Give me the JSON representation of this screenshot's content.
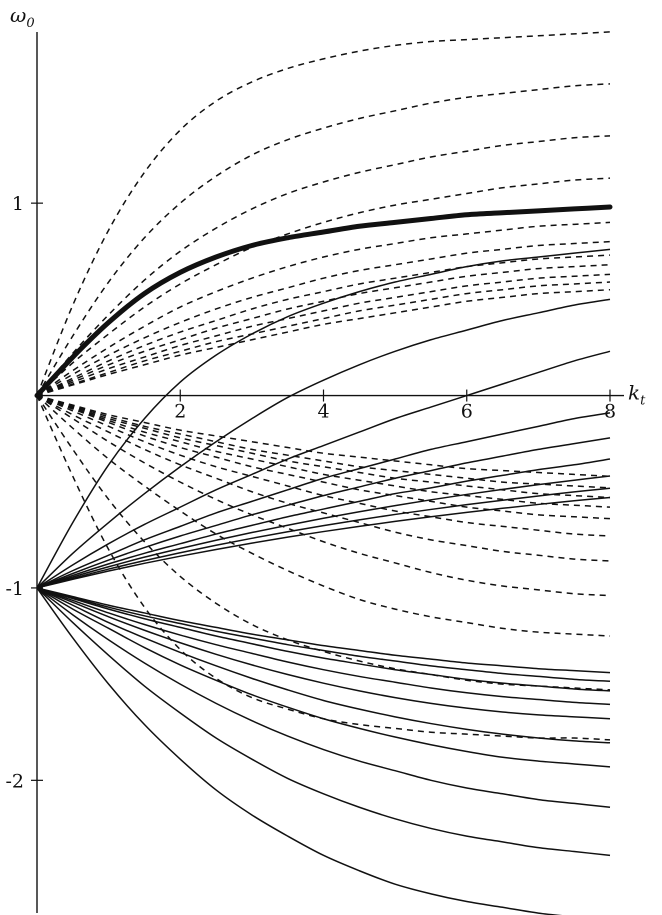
{
  "chart_data": {
    "type": "line",
    "title": "",
    "xlabel": {
      "main": "k",
      "sub": "t"
    },
    "ylabel": {
      "main": "ω",
      "sub": "0"
    },
    "xlim": [
      0,
      8
    ],
    "ylim": [
      -2.7,
      1.9
    ],
    "x_ticks": [
      {
        "value": 2,
        "label": "2"
      },
      {
        "value": 4,
        "label": "4"
      },
      {
        "value": 6,
        "label": "6"
      },
      {
        "value": 8,
        "label": "8"
      }
    ],
    "y_ticks": [
      {
        "value": 1,
        "label": "1"
      },
      {
        "value": -1,
        "label": "-1"
      },
      {
        "value": -2,
        "label": "-2"
      }
    ],
    "grid": false,
    "legend": "none",
    "line_color": "#111111",
    "x": [
      0,
      0.5,
      1,
      1.5,
      2,
      2.5,
      3,
      3.5,
      4,
      4.5,
      5,
      5.5,
      6,
      6.5,
      7,
      7.5,
      8
    ],
    "series": [
      {
        "style": "bold",
        "values": [
          0,
          0.2,
          0.38,
          0.53,
          0.64,
          0.72,
          0.78,
          0.82,
          0.85,
          0.88,
          0.9,
          0.92,
          0.94,
          0.95,
          0.96,
          0.97,
          0.98
        ]
      },
      {
        "style": "dashed",
        "values": [
          0,
          0.47,
          0.86,
          1.16,
          1.38,
          1.53,
          1.63,
          1.7,
          1.75,
          1.79,
          1.82,
          1.84,
          1.85,
          1.86,
          1.87,
          1.88,
          1.89
        ]
      },
      {
        "style": "dashed",
        "values": [
          0,
          0.31,
          0.59,
          0.82,
          1.0,
          1.14,
          1.25,
          1.33,
          1.39,
          1.44,
          1.48,
          1.52,
          1.55,
          1.57,
          1.59,
          1.61,
          1.62
        ]
      },
      {
        "style": "dashed",
        "values": [
          0,
          0.22,
          0.42,
          0.6,
          0.75,
          0.87,
          0.97,
          1.05,
          1.11,
          1.16,
          1.2,
          1.24,
          1.27,
          1.3,
          1.32,
          1.34,
          1.35
        ]
      },
      {
        "style": "dashed",
        "values": [
          0,
          0.17,
          0.32,
          0.46,
          0.58,
          0.68,
          0.77,
          0.84,
          0.9,
          0.95,
          0.99,
          1.02,
          1.05,
          1.08,
          1.1,
          1.12,
          1.13
        ]
      },
      {
        "style": "dashed",
        "values": [
          0,
          0.13,
          0.25,
          0.36,
          0.46,
          0.54,
          0.61,
          0.67,
          0.72,
          0.76,
          0.79,
          0.82,
          0.84,
          0.86,
          0.88,
          0.89,
          0.9
        ]
      },
      {
        "style": "dashed",
        "values": [
          0,
          0.11,
          0.21,
          0.3,
          0.38,
          0.45,
          0.51,
          0.56,
          0.61,
          0.65,
          0.68,
          0.71,
          0.74,
          0.76,
          0.78,
          0.79,
          0.8
        ]
      },
      {
        "style": "dashed",
        "values": [
          0,
          0.09,
          0.18,
          0.26,
          0.33,
          0.39,
          0.45,
          0.5,
          0.54,
          0.58,
          0.61,
          0.64,
          0.67,
          0.69,
          0.71,
          0.72,
          0.73
        ]
      },
      {
        "style": "dashed",
        "values": [
          0,
          0.08,
          0.16,
          0.23,
          0.29,
          0.35,
          0.4,
          0.45,
          0.49,
          0.53,
          0.56,
          0.59,
          0.62,
          0.64,
          0.66,
          0.67,
          0.68
        ]
      },
      {
        "style": "dashed",
        "values": [
          0,
          0.07,
          0.14,
          0.2,
          0.26,
          0.31,
          0.36,
          0.4,
          0.44,
          0.48,
          0.51,
          0.54,
          0.57,
          0.59,
          0.61,
          0.62,
          0.63
        ]
      },
      {
        "style": "dashed",
        "values": [
          0,
          0.06,
          0.12,
          0.18,
          0.23,
          0.28,
          0.32,
          0.36,
          0.4,
          0.44,
          0.47,
          0.5,
          0.53,
          0.55,
          0.57,
          0.58,
          0.59
        ]
      },
      {
        "style": "dashed",
        "values": [
          0,
          0.055,
          0.11,
          0.16,
          0.21,
          0.25,
          0.29,
          0.33,
          0.37,
          0.4,
          0.43,
          0.46,
          0.49,
          0.51,
          0.53,
          0.54,
          0.55
        ]
      },
      {
        "style": "dashed",
        "values": [
          0,
          -0.05,
          -0.1,
          -0.14,
          -0.18,
          -0.21,
          -0.24,
          -0.27,
          -0.3,
          -0.32,
          -0.34,
          -0.36,
          -0.38,
          -0.39,
          -0.4,
          -0.41,
          -0.42
        ]
      },
      {
        "style": "dashed",
        "values": [
          0,
          -0.055,
          -0.11,
          -0.16,
          -0.2,
          -0.24,
          -0.28,
          -0.31,
          -0.34,
          -0.37,
          -0.39,
          -0.41,
          -0.43,
          -0.45,
          -0.46,
          -0.47,
          -0.48
        ]
      },
      {
        "style": "dashed",
        "values": [
          0,
          -0.06,
          -0.12,
          -0.17,
          -0.22,
          -0.26,
          -0.3,
          -0.34,
          -0.37,
          -0.4,
          -0.43,
          -0.45,
          -0.47,
          -0.49,
          -0.51,
          -0.52,
          -0.53
        ]
      },
      {
        "style": "dashed",
        "values": [
          0,
          -0.065,
          -0.13,
          -0.19,
          -0.24,
          -0.29,
          -0.33,
          -0.37,
          -0.41,
          -0.44,
          -0.47,
          -0.5,
          -0.52,
          -0.54,
          -0.56,
          -0.57,
          -0.58
        ]
      },
      {
        "style": "dashed",
        "values": [
          0,
          -0.07,
          -0.14,
          -0.21,
          -0.27,
          -0.32,
          -0.37,
          -0.41,
          -0.45,
          -0.49,
          -0.52,
          -0.55,
          -0.58,
          -0.6,
          -0.62,
          -0.63,
          -0.64
        ]
      },
      {
        "style": "dashed",
        "values": [
          0,
          -0.08,
          -0.16,
          -0.24,
          -0.31,
          -0.37,
          -0.42,
          -0.47,
          -0.52,
          -0.56,
          -0.6,
          -0.63,
          -0.66,
          -0.68,
          -0.7,
          -0.72,
          -0.73
        ]
      },
      {
        "style": "dashed",
        "values": [
          0,
          -0.1,
          -0.19,
          -0.28,
          -0.36,
          -0.43,
          -0.5,
          -0.56,
          -0.61,
          -0.66,
          -0.71,
          -0.75,
          -0.78,
          -0.81,
          -0.83,
          -0.85,
          -0.86
        ]
      },
      {
        "style": "dashed",
        "values": [
          0,
          -0.12,
          -0.24,
          -0.35,
          -0.45,
          -0.54,
          -0.62,
          -0.69,
          -0.76,
          -0.82,
          -0.87,
          -0.92,
          -0.96,
          -0.99,
          -1.01,
          -1.03,
          -1.04
        ]
      },
      {
        "style": "dashed",
        "values": [
          0,
          -0.17,
          -0.33,
          -0.47,
          -0.6,
          -0.72,
          -0.82,
          -0.91,
          -0.99,
          -1.06,
          -1.11,
          -1.15,
          -1.18,
          -1.21,
          -1.23,
          -1.24,
          -1.25
        ]
      },
      {
        "style": "dashed",
        "values": [
          0,
          -0.28,
          -0.54,
          -0.76,
          -0.94,
          -1.08,
          -1.19,
          -1.27,
          -1.33,
          -1.38,
          -1.42,
          -1.45,
          -1.48,
          -1.5,
          -1.51,
          -1.52,
          -1.53
        ]
      },
      {
        "style": "dashed",
        "values": [
          0,
          -0.42,
          -0.8,
          -1.1,
          -1.32,
          -1.47,
          -1.57,
          -1.63,
          -1.68,
          -1.71,
          -1.73,
          -1.75,
          -1.76,
          -1.77,
          -1.78,
          -1.78,
          -1.79
        ]
      },
      {
        "style": "solid",
        "values": [
          -1,
          -0.66,
          -0.36,
          -0.12,
          0.07,
          0.21,
          0.32,
          0.41,
          0.48,
          0.54,
          0.59,
          0.63,
          0.67,
          0.7,
          0.72,
          0.74,
          0.76
        ]
      },
      {
        "style": "solid",
        "values": [
          -1,
          -0.82,
          -0.66,
          -0.51,
          -0.37,
          -0.24,
          -0.12,
          -0.01,
          0.08,
          0.16,
          0.23,
          0.29,
          0.34,
          0.39,
          0.43,
          0.47,
          0.5
        ]
      },
      {
        "style": "solid",
        "values": [
          -1,
          -0.88,
          -0.77,
          -0.67,
          -0.58,
          -0.49,
          -0.41,
          -0.33,
          -0.26,
          -0.19,
          -0.12,
          -0.06,
          0.0,
          0.06,
          0.12,
          0.18,
          0.23
        ]
      },
      {
        "style": "solid",
        "values": [
          -1,
          -0.91,
          -0.83,
          -0.75,
          -0.68,
          -0.61,
          -0.55,
          -0.49,
          -0.43,
          -0.38,
          -0.33,
          -0.28,
          -0.24,
          -0.2,
          -0.16,
          -0.12,
          -0.09
        ]
      },
      {
        "style": "solid",
        "values": [
          -1,
          -0.925,
          -0.855,
          -0.79,
          -0.73,
          -0.675,
          -0.62,
          -0.57,
          -0.52,
          -0.475,
          -0.43,
          -0.39,
          -0.35,
          -0.315,
          -0.28,
          -0.25,
          -0.22
        ]
      },
      {
        "style": "solid",
        "values": [
          -1,
          -0.935,
          -0.875,
          -0.82,
          -0.77,
          -0.72,
          -0.675,
          -0.63,
          -0.59,
          -0.55,
          -0.51,
          -0.48,
          -0.445,
          -0.415,
          -0.385,
          -0.36,
          -0.33
        ]
      },
      {
        "style": "solid",
        "values": [
          -1,
          -0.943,
          -0.89,
          -0.84,
          -0.795,
          -0.752,
          -0.712,
          -0.674,
          -0.638,
          -0.604,
          -0.572,
          -0.542,
          -0.514,
          -0.488,
          -0.463,
          -0.44,
          -0.418
        ]
      },
      {
        "style": "solid",
        "values": [
          -1,
          -0.95,
          -0.902,
          -0.858,
          -0.817,
          -0.778,
          -0.742,
          -0.708,
          -0.676,
          -0.646,
          -0.618,
          -0.592,
          -0.567,
          -0.544,
          -0.522,
          -0.501,
          -0.482
        ]
      },
      {
        "style": "solid",
        "values": [
          -1,
          -0.955,
          -0.912,
          -0.872,
          -0.835,
          -0.8,
          -0.767,
          -0.736,
          -0.707,
          -0.68,
          -0.654,
          -0.63,
          -0.607,
          -0.586,
          -0.566,
          -0.547,
          -0.53
        ]
      },
      {
        "style": "solid",
        "values": [
          -1,
          -1.045,
          -1.09,
          -1.13,
          -1.17,
          -1.205,
          -1.24,
          -1.27,
          -1.3,
          -1.325,
          -1.35,
          -1.37,
          -1.39,
          -1.405,
          -1.42,
          -1.43,
          -1.44
        ]
      },
      {
        "style": "solid",
        "values": [
          -1,
          -1.05,
          -1.1,
          -1.145,
          -1.185,
          -1.225,
          -1.26,
          -1.295,
          -1.325,
          -1.355,
          -1.38,
          -1.405,
          -1.425,
          -1.445,
          -1.46,
          -1.475,
          -1.485
        ]
      },
      {
        "style": "solid",
        "values": [
          -1,
          -1.055,
          -1.11,
          -1.16,
          -1.205,
          -1.25,
          -1.29,
          -1.33,
          -1.365,
          -1.395,
          -1.425,
          -1.45,
          -1.475,
          -1.495,
          -1.51,
          -1.525,
          -1.535
        ]
      },
      {
        "style": "solid",
        "values": [
          -1,
          -1.065,
          -1.13,
          -1.19,
          -1.245,
          -1.295,
          -1.34,
          -1.385,
          -1.425,
          -1.46,
          -1.49,
          -1.52,
          -1.545,
          -1.565,
          -1.58,
          -1.595,
          -1.605
        ]
      },
      {
        "style": "solid",
        "values": [
          -1,
          -1.075,
          -1.15,
          -1.22,
          -1.285,
          -1.345,
          -1.4,
          -1.45,
          -1.495,
          -1.535,
          -1.57,
          -1.6,
          -1.625,
          -1.645,
          -1.66,
          -1.67,
          -1.68
        ]
      },
      {
        "style": "solid",
        "values": [
          -1,
          -1.09,
          -1.18,
          -1.26,
          -1.335,
          -1.405,
          -1.47,
          -1.53,
          -1.585,
          -1.63,
          -1.67,
          -1.705,
          -1.735,
          -1.76,
          -1.78,
          -1.795,
          -1.805
        ]
      },
      {
        "style": "solid",
        "values": [
          -1,
          -1.11,
          -1.21,
          -1.31,
          -1.4,
          -1.48,
          -1.555,
          -1.62,
          -1.68,
          -1.73,
          -1.775,
          -1.815,
          -1.85,
          -1.88,
          -1.9,
          -1.915,
          -1.93
        ]
      },
      {
        "style": "solid",
        "values": [
          -1,
          -1.14,
          -1.27,
          -1.39,
          -1.5,
          -1.6,
          -1.69,
          -1.77,
          -1.84,
          -1.9,
          -1.95,
          -2.0,
          -2.04,
          -2.07,
          -2.1,
          -2.12,
          -2.14
        ]
      },
      {
        "style": "solid",
        "values": [
          -1,
          -1.18,
          -1.35,
          -1.51,
          -1.65,
          -1.78,
          -1.89,
          -1.99,
          -2.07,
          -2.14,
          -2.2,
          -2.25,
          -2.29,
          -2.32,
          -2.35,
          -2.37,
          -2.39
        ]
      },
      {
        "style": "solid",
        "values": [
          -1,
          -1.26,
          -1.5,
          -1.71,
          -1.89,
          -2.05,
          -2.18,
          -2.29,
          -2.39,
          -2.47,
          -2.54,
          -2.59,
          -2.63,
          -2.66,
          -2.69,
          -2.71,
          -2.73
        ]
      }
    ]
  }
}
